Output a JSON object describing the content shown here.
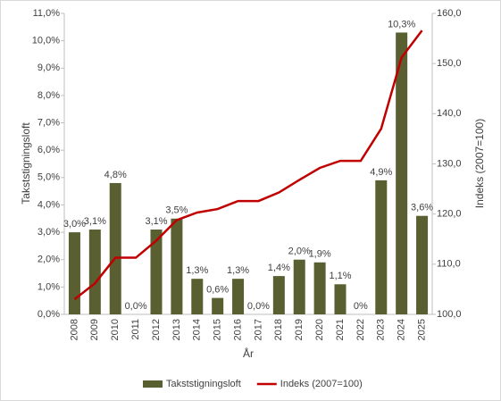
{
  "chart_data": {
    "type": "bar-line",
    "categories": [
      "2008",
      "2009",
      "2010",
      "2011",
      "2012",
      "2013",
      "2014",
      "2015",
      "2016",
      "2017",
      "2018",
      "2019",
      "2020",
      "2021",
      "2022",
      "2023",
      "2024",
      "2025"
    ],
    "series": [
      {
        "name": "Takststigningsloft",
        "type": "bar",
        "color": "#595f30",
        "values": [
          3.0,
          3.1,
          4.8,
          0.0,
          3.1,
          3.5,
          1.3,
          0.6,
          1.3,
          0.0,
          1.4,
          2.0,
          1.9,
          1.1,
          0,
          4.9,
          10.3,
          3.6
        ],
        "value_labels": [
          "3,0%",
          "3,1%",
          "4,8%",
          "0,0%",
          "3,1%",
          "3,5%",
          "1,3%",
          "0,6%",
          "1,3%",
          "0,0%",
          "1,4%",
          "2,0%",
          "1,9%",
          "1,1%",
          "0%",
          "4,9%",
          "10,3%",
          "3,6%"
        ]
      },
      {
        "name": "Indeks (2007=100)",
        "type": "line",
        "color": "#c00000",
        "axis": "y2",
        "values": [
          103.0,
          106.2,
          111.3,
          111.3,
          114.7,
          118.8,
          120.3,
          121.0,
          122.6,
          122.6,
          124.3,
          126.8,
          129.2,
          130.6,
          130.6,
          137.0,
          151.2,
          156.6
        ]
      }
    ],
    "xlabel": "År",
    "ylabel": "Takststigningsloft",
    "y2label": "Indeks (2007=100)",
    "ylim": [
      0,
      11
    ],
    "yticks": [
      {
        "value": 0,
        "label": "0,0%"
      },
      {
        "value": 1,
        "label": "1,0%"
      },
      {
        "value": 2,
        "label": "2,0%"
      },
      {
        "value": 3,
        "label": "3,0%"
      },
      {
        "value": 4,
        "label": "4,0%"
      },
      {
        "value": 5,
        "label": "5,0%"
      },
      {
        "value": 6,
        "label": "6,0%"
      },
      {
        "value": 7,
        "label": "7,0%"
      },
      {
        "value": 8,
        "label": "8,0%"
      },
      {
        "value": 9,
        "label": "9,0%"
      },
      {
        "value": 10,
        "label": "10,0%"
      },
      {
        "value": 11,
        "label": "11,0%"
      }
    ],
    "y2lim": [
      100,
      160
    ],
    "y2ticks": [
      {
        "value": 100,
        "label": "100,0"
      },
      {
        "value": 110,
        "label": "110,0"
      },
      {
        "value": 120,
        "label": "120,0"
      },
      {
        "value": 130,
        "label": "130,0"
      },
      {
        "value": 140,
        "label": "140,0"
      },
      {
        "value": 150,
        "label": "150,0"
      },
      {
        "value": 160,
        "label": "160,0"
      }
    ],
    "legend": "bottom"
  }
}
